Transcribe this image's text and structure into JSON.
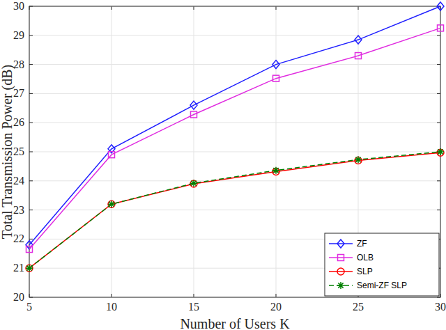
{
  "chart_data": {
    "type": "line",
    "x_label": "Number of Users K",
    "y_label": "Total Transmission Power (dB)",
    "x": [
      5,
      10,
      15,
      20,
      25,
      30
    ],
    "series": [
      {
        "name": "ZF",
        "color": "#1f1fff",
        "marker": "diamond",
        "line_style": "solid",
        "values": [
          21.8,
          25.1,
          26.6,
          28.0,
          28.85,
          30.0
        ]
      },
      {
        "name": "OLB",
        "color": "#e02ce0",
        "marker": "square",
        "line_style": "solid",
        "values": [
          21.65,
          24.9,
          26.28,
          27.52,
          28.3,
          29.25
        ]
      },
      {
        "name": "SLP",
        "color": "#ff0000",
        "marker": "circle",
        "line_style": "solid",
        "values": [
          21.0,
          23.2,
          23.9,
          24.32,
          24.7,
          24.97
        ]
      },
      {
        "name": "Semi-ZF SLP",
        "color": "#008000",
        "marker": "asterisk",
        "line_style": "dashed",
        "values": [
          21.0,
          23.2,
          23.92,
          24.36,
          24.73,
          25.0
        ]
      }
    ],
    "xlim": [
      5,
      30
    ],
    "xticks": [
      5,
      10,
      15,
      20,
      25,
      30
    ],
    "ylim": [
      20,
      30
    ],
    "yticks": [
      20,
      21,
      22,
      23,
      24,
      25,
      26,
      27,
      28,
      29,
      30
    ],
    "grid": true,
    "legend": "bottom-right"
  }
}
